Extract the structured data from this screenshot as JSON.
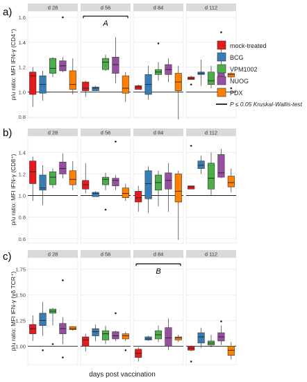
{
  "legend": {
    "items": [
      {
        "label": "mock-treated",
        "color": "#e41a1c"
      },
      {
        "label": "BCG",
        "color": "#377eb8"
      },
      {
        "label": "VPM1002",
        "color": "#4daf4a"
      },
      {
        "label": "NUOG",
        "color": "#984ea3"
      },
      {
        "label": "PDX",
        "color": "#ff7f00"
      }
    ],
    "sig_label": "P ≤ 0.05  Kruskal-Wallis-test"
  },
  "xlabel": "days post vaccination",
  "panel_labels": [
    "a)",
    "b)",
    "c)"
  ],
  "facets": [
    "d 28",
    "d 56",
    "d 84",
    "d 112"
  ],
  "colors": [
    "#e41a1c",
    "#377eb8",
    "#4daf4a",
    "#984ea3",
    "#ff7f00"
  ],
  "chart_data": [
    {
      "type": "boxplot",
      "panel": "a)",
      "ylabel": "p/u ratio: MFI IFN-γ (CD4⁺)",
      "ylim": [
        0.79,
        1.65
      ],
      "yticks": [
        0.8,
        1.0,
        1.2,
        1.4,
        1.6
      ],
      "ytick_labels": [
        "0.8",
        "1.0",
        "1.2",
        "1.4",
        "1.6"
      ],
      "hline": 1.0,
      "groups": [
        "mock-treated",
        "BCG",
        "VPM1002",
        "NUOG",
        "PDX"
      ],
      "facets": [
        {
          "name": "d 28",
          "boxes": [
            {
              "min": 0.88,
              "q1": 0.98,
              "median": 1.13,
              "q3": 1.16,
              "max": 1.2,
              "outliers": []
            },
            {
              "min": 0.93,
              "q1": 0.99,
              "median": 1.06,
              "q3": 1.13,
              "max": 1.17,
              "outliers": []
            },
            {
              "min": 1.12,
              "q1": 1.15,
              "median": 1.19,
              "q3": 1.27,
              "max": 1.28,
              "outliers": []
            },
            {
              "min": 1.16,
              "q1": 1.17,
              "median": 1.21,
              "q3": 1.25,
              "max": 1.28,
              "outliers": [
                1.6
              ]
            },
            {
              "min": 0.98,
              "q1": 1.02,
              "median": 1.06,
              "q3": 1.17,
              "max": 1.27,
              "outliers": []
            }
          ]
        },
        {
          "name": "d 56",
          "boxes": [
            {
              "min": 0.96,
              "q1": 1.01,
              "median": 1.03,
              "q3": 1.08,
              "max": 1.09,
              "outliers": []
            },
            {
              "min": 1.01,
              "q1": 1.01,
              "median": 1.03,
              "q3": 1.04,
              "max": 1.05,
              "outliers": []
            },
            {
              "min": 1.17,
              "q1": 1.18,
              "median": 1.24,
              "q3": 1.27,
              "max": 1.3,
              "outliers": []
            },
            {
              "min": 1.07,
              "q1": 1.15,
              "median": 1.22,
              "q3": 1.28,
              "max": 1.44,
              "outliers": []
            },
            {
              "min": 0.92,
              "q1": 0.99,
              "median": 1.03,
              "q3": 1.13,
              "max": 1.16,
              "outliers": []
            }
          ]
        },
        {
          "name": "d 84",
          "boxes": [
            {
              "min": 1.02,
              "q1": 1.02,
              "median": 1.04,
              "q3": 1.05,
              "max": 1.06,
              "outliers": []
            },
            {
              "min": 0.94,
              "q1": 0.98,
              "median": 1.06,
              "q3": 1.14,
              "max": 1.21,
              "outliers": []
            },
            {
              "min": 1.09,
              "q1": 1.14,
              "median": 1.16,
              "q3": 1.18,
              "max": 1.24,
              "outliers": [
                1.39
              ]
            },
            {
              "min": 1.08,
              "q1": 1.14,
              "median": 1.18,
              "q3": 1.22,
              "max": 1.27,
              "outliers": []
            },
            {
              "min": 0.78,
              "q1": 1.01,
              "median": 1.08,
              "q3": 1.15,
              "max": 1.21,
              "outliers": []
            }
          ]
        },
        {
          "name": "d 112",
          "boxes": [
            {
              "min": 1.1,
              "q1": 1.1,
              "median": 1.11,
              "q3": 1.12,
              "max": 1.13,
              "outliers": [
                1.06
              ]
            },
            {
              "min": 1.05,
              "q1": 1.14,
              "median": 1.15,
              "q3": 1.16,
              "max": 1.26,
              "outliers": []
            },
            {
              "min": 1.03,
              "q1": 1.06,
              "median": 1.09,
              "q3": 1.16,
              "max": 1.21,
              "outliers": []
            },
            {
              "min": 1.09,
              "q1": 1.11,
              "median": 1.16,
              "q3": 1.21,
              "max": 1.41,
              "outliers": [
                1.48
              ]
            },
            {
              "min": 1.1,
              "q1": 1.12,
              "median": 1.14,
              "q3": 1.15,
              "max": 1.16,
              "outliers": [
                1.03
              ]
            }
          ]
        }
      ],
      "significance": [
        {
          "facet": "d 56",
          "label": "A",
          "y": 1.61
        }
      ]
    },
    {
      "type": "boxplot",
      "panel": "b)",
      "ylabel": "p/u ratio: MFI IFN-γ (CD8⁺)",
      "ylim": [
        0.56,
        1.55
      ],
      "yticks": [
        0.6,
        0.8,
        1.0,
        1.2,
        1.4
      ],
      "ytick_labels": [
        "0.6",
        "0.8",
        "1.0",
        "1.2",
        "1.4"
      ],
      "hline": 1.0,
      "groups": [
        "mock-treated",
        "BCG",
        "VPM1002",
        "NUOG",
        "PDX"
      ],
      "facets": [
        {
          "name": "d 28",
          "boxes": [
            {
              "min": 0.95,
              "q1": 1.11,
              "median": 1.22,
              "q3": 1.32,
              "max": 1.36,
              "outliers": []
            },
            {
              "min": 0.91,
              "q1": 1.05,
              "median": 1.07,
              "q3": 1.19,
              "max": 1.28,
              "outliers": []
            },
            {
              "min": 1.07,
              "q1": 1.1,
              "median": 1.17,
              "q3": 1.22,
              "max": 1.25,
              "outliers": []
            },
            {
              "min": 1.16,
              "q1": 1.2,
              "median": 1.25,
              "q3": 1.31,
              "max": 1.39,
              "outliers": []
            },
            {
              "min": 1.05,
              "q1": 1.1,
              "median": 1.15,
              "q3": 1.23,
              "max": 1.32,
              "outliers": []
            }
          ]
        },
        {
          "name": "d 56",
          "boxes": [
            {
              "min": 1.02,
              "q1": 1.06,
              "median": 1.1,
              "q3": 1.14,
              "max": 1.3,
              "outliers": []
            },
            {
              "min": 0.99,
              "q1": 0.99,
              "median": 1.02,
              "q3": 1.03,
              "max": 1.04,
              "outliers": []
            },
            {
              "min": 1.05,
              "q1": 1.1,
              "median": 1.15,
              "q3": 1.17,
              "max": 1.21,
              "outliers": [
                0.87
              ]
            },
            {
              "min": 1.05,
              "q1": 1.09,
              "median": 1.14,
              "q3": 1.16,
              "max": 1.19,
              "outliers": [
                1.5
              ]
            },
            {
              "min": 0.95,
              "q1": 0.98,
              "median": 1.02,
              "q3": 1.07,
              "max": 1.11,
              "outliers": []
            }
          ]
        },
        {
          "name": "d 84",
          "boxes": [
            {
              "min": 0.85,
              "q1": 0.94,
              "median": 0.98,
              "q3": 1.04,
              "max": 1.09,
              "outliers": []
            },
            {
              "min": 0.84,
              "q1": 0.97,
              "median": 1.11,
              "q3": 1.23,
              "max": 1.27,
              "outliers": []
            },
            {
              "min": 0.9,
              "q1": 1.05,
              "median": 1.12,
              "q3": 1.19,
              "max": 1.23,
              "outliers": []
            },
            {
              "min": 0.85,
              "q1": 1.06,
              "median": 1.14,
              "q3": 1.21,
              "max": 1.3,
              "outliers": []
            },
            {
              "min": 0.59,
              "q1": 0.94,
              "median": 1.04,
              "q3": 1.2,
              "max": 1.23,
              "outliers": []
            }
          ]
        },
        {
          "name": "d 112",
          "boxes": [
            {
              "min": 1.06,
              "q1": 1.06,
              "median": 1.08,
              "q3": 1.09,
              "max": 1.09,
              "outliers": [
                1.46
              ]
            },
            {
              "min": 1.2,
              "q1": 1.25,
              "median": 1.28,
              "q3": 1.32,
              "max": 1.37,
              "outliers": []
            },
            {
              "min": 1.0,
              "q1": 1.06,
              "median": 1.16,
              "q3": 1.3,
              "max": 1.4,
              "outliers": []
            },
            {
              "min": 1.16,
              "q1": 1.17,
              "median": 1.21,
              "q3": 1.38,
              "max": 1.43,
              "outliers": []
            },
            {
              "min": 1.03,
              "q1": 1.08,
              "median": 1.12,
              "q3": 1.18,
              "max": 1.25,
              "outliers": []
            }
          ]
        }
      ],
      "significance": []
    },
    {
      "type": "boxplot",
      "panel": "c)",
      "ylabel": "p/u ratio: MFI IFN-γ (γδ TCR⁺)",
      "ylim": [
        0.82,
        1.86
      ],
      "yticks": [
        1.0,
        1.25,
        1.5,
        1.75
      ],
      "ytick_labels": [
        "1.00",
        "1.25",
        "1.50",
        "1.75"
      ],
      "hline": 1.0,
      "groups": [
        "mock-treated",
        "BCG",
        "VPM1002",
        "NUOG",
        "PDX"
      ],
      "facets": [
        {
          "name": "d 28",
          "boxes": [
            {
              "min": 1.05,
              "q1": 1.12,
              "median": 1.17,
              "q3": 1.21,
              "max": 1.3,
              "outliers": []
            },
            {
              "min": 1.1,
              "q1": 1.2,
              "median": 1.25,
              "q3": 1.32,
              "max": 1.43,
              "outliers": [
                0.96
              ]
            },
            {
              "min": 1.2,
              "q1": 1.32,
              "median": 1.34,
              "q3": 1.36,
              "max": 1.37,
              "outliers": [
                1.02
              ]
            },
            {
              "min": 1.02,
              "q1": 1.12,
              "median": 1.17,
              "q3": 1.22,
              "max": 1.28,
              "outliers": [
                1.64,
                0.89
              ]
            },
            {
              "min": 1.15,
              "q1": 1.16,
              "median": 1.17,
              "q3": 1.19,
              "max": 1.19,
              "outliers": []
            }
          ]
        },
        {
          "name": "d 56",
          "boxes": [
            {
              "min": 0.95,
              "q1": 1.0,
              "median": 1.06,
              "q3": 1.09,
              "max": 1.12,
              "outliers": []
            },
            {
              "min": 1.05,
              "q1": 1.1,
              "median": 1.14,
              "q3": 1.17,
              "max": 1.21,
              "outliers": []
            },
            {
              "min": 1.02,
              "q1": 1.06,
              "median": 1.12,
              "q3": 1.15,
              "max": 1.2,
              "outliers": []
            },
            {
              "min": 1.05,
              "q1": 1.07,
              "median": 1.1,
              "q3": 1.14,
              "max": 1.15,
              "outliers": [
                1.32
              ]
            },
            {
              "min": 1.05,
              "q1": 1.07,
              "median": 1.1,
              "q3": 1.12,
              "max": 1.14,
              "outliers": [
                0.96
              ]
            }
          ]
        },
        {
          "name": "d 84",
          "boxes": [
            {
              "min": 0.85,
              "q1": 0.89,
              "median": 0.93,
              "q3": 0.97,
              "max": 0.99,
              "outliers": []
            },
            {
              "min": 1.05,
              "q1": 1.06,
              "median": 1.07,
              "q3": 1.09,
              "max": 1.1,
              "outliers": []
            },
            {
              "min": 1.04,
              "q1": 1.07,
              "median": 1.11,
              "q3": 1.15,
              "max": 1.2,
              "outliers": []
            },
            {
              "min": 0.96,
              "q1": 1.0,
              "median": 1.08,
              "q3": 1.18,
              "max": 1.27,
              "outliers": []
            },
            {
              "min": 1.04,
              "q1": 1.06,
              "median": 1.08,
              "q3": 1.09,
              "max": 1.11,
              "outliers": []
            }
          ]
        },
        {
          "name": "d 112",
          "boxes": [
            {
              "min": 0.95,
              "q1": 0.96,
              "median": 0.98,
              "q3": 1.0,
              "max": 1.01,
              "outliers": [
                0.85
              ]
            },
            {
              "min": 0.98,
              "q1": 1.03,
              "median": 1.09,
              "q3": 1.13,
              "max": 1.18,
              "outliers": []
            },
            {
              "min": 0.99,
              "q1": 1.01,
              "median": 1.03,
              "q3": 1.05,
              "max": 1.11,
              "outliers": []
            },
            {
              "min": 1.01,
              "q1": 1.05,
              "median": 1.09,
              "q3": 1.13,
              "max": 1.2,
              "outliers": [
                1.24
              ]
            },
            {
              "min": 0.87,
              "q1": 0.91,
              "median": 0.96,
              "q3": 1.0,
              "max": 1.04,
              "outliers": []
            }
          ]
        }
      ],
      "significance": [
        {
          "facet": "d 84",
          "label": "B",
          "y": 1.8
        }
      ]
    }
  ]
}
